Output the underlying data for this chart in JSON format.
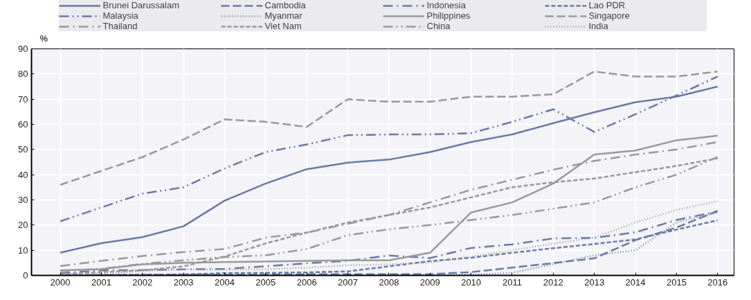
{
  "chart_data": {
    "type": "line",
    "ylabel": "%",
    "x": [
      2000,
      2001,
      2002,
      2003,
      2004,
      2005,
      2006,
      2007,
      2008,
      2009,
      2010,
      2011,
      2012,
      2013,
      2014,
      2015,
      2016
    ],
    "xlim": [
      1999.3,
      2016.4
    ],
    "xticks": [
      2000,
      2001,
      2002,
      2003,
      2004,
      2005,
      2006,
      2007,
      2008,
      2009,
      2010,
      2011,
      2012,
      2013,
      2014,
      2015,
      2016
    ],
    "ylim": [
      0,
      90
    ],
    "yticks": [
      0,
      10,
      20,
      30,
      40,
      50,
      60,
      70,
      80,
      90
    ],
    "grid": true,
    "legend": "top",
    "series": [
      {
        "name": "Brunei Darussalam",
        "color": "#6a7aa5",
        "line_style": "solid",
        "values": [
          9,
          12.8,
          15.2,
          19.5,
          29.7,
          36.5,
          42.2,
          44.8,
          46,
          49,
          53,
          56,
          60.5,
          64.8,
          68.8,
          71,
          75
        ]
      },
      {
        "name": "Cambodia",
        "color": "#6a7aa5",
        "line_style": "longdash",
        "values": [
          0.1,
          0.1,
          0.2,
          0.3,
          0.3,
          0.3,
          0.5,
          0.5,
          0.5,
          0.5,
          1.3,
          3.1,
          4.9,
          6.8,
          14,
          19,
          25.6
        ]
      },
      {
        "name": "Indonesia",
        "color": "#6a7aa5",
        "line_style": "dashdot",
        "values": [
          0.9,
          2,
          2.1,
          2.4,
          2.6,
          3.6,
          4.8,
          5.8,
          7.9,
          6.9,
          10.9,
          12.3,
          14.7,
          14.9,
          17.1,
          22,
          25.4
        ]
      },
      {
        "name": "Lao PDR",
        "color": "#6a7aa5",
        "line_style": "dashed",
        "values": [
          0.1,
          0.2,
          0.3,
          0.4,
          0.9,
          1,
          1.2,
          1.6,
          3.6,
          5.7,
          7,
          9,
          10.8,
          12.5,
          14.3,
          18.2,
          21.9
        ]
      },
      {
        "name": "Malaysia",
        "color": "#6a7aa5",
        "line_style": "dashdotdot",
        "values": [
          21.5,
          27,
          32.5,
          35,
          42.5,
          49,
          52,
          55.7,
          56,
          56,
          56.5,
          61,
          66,
          57,
          64,
          71.5,
          79
        ]
      },
      {
        "name": "Myanmar",
        "color": "#6a7aa5",
        "line_style": "dotted",
        "values": [
          0,
          0,
          0,
          0,
          0,
          0.1,
          0.2,
          0.2,
          0.2,
          0.2,
          0.3,
          1,
          4.5,
          8,
          10,
          21,
          25
        ]
      },
      {
        "name": "Philippines",
        "color": "#999999",
        "line_style": "solid",
        "values": [
          2,
          2.5,
          4.4,
          5,
          5.3,
          5.5,
          5.8,
          6,
          6,
          9,
          25,
          29,
          36.5,
          48,
          49.6,
          53.7,
          55.5
        ]
      },
      {
        "name": "Singapore",
        "color": "#999999",
        "line_style": "longdash",
        "values": [
          36,
          41.5,
          47,
          54,
          62,
          61,
          59,
          70,
          69,
          69,
          71,
          71,
          72,
          81,
          79,
          79,
          81
        ]
      },
      {
        "name": "Thailand",
        "color": "#999999",
        "line_style": "dashdot",
        "values": [
          3.7,
          5.8,
          7.7,
          9.3,
          10.5,
          15,
          17,
          20.5,
          24,
          29,
          34,
          38,
          42,
          45.5,
          48,
          50,
          53
        ]
      },
      {
        "name": "Viet Nam",
        "color": "#999999",
        "line_style": "dashed",
        "values": [
          0.5,
          1.3,
          2,
          3.6,
          7.5,
          12.7,
          17,
          21,
          24,
          27,
          31,
          35,
          37,
          38.5,
          41,
          43.5,
          46.5
        ]
      },
      {
        "name": "China",
        "color": "#999999",
        "line_style": "dashdotdot",
        "values": [
          1.8,
          2.6,
          4.6,
          6,
          7.3,
          8,
          10.5,
          16,
          18.3,
          20,
          22,
          24,
          26.5,
          29,
          35,
          40,
          47
        ]
      },
      {
        "name": "India",
        "color": "#999999",
        "line_style": "dotted",
        "values": [
          0.5,
          0.7,
          1.7,
          2.4,
          2.2,
          2.4,
          3.1,
          4,
          4.4,
          5.1,
          7.5,
          10,
          12.6,
          15,
          21,
          26,
          29.5
        ]
      }
    ]
  }
}
